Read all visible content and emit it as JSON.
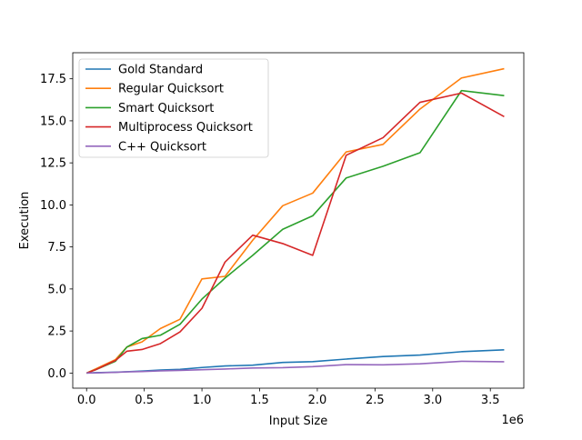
{
  "chart_data": {
    "type": "line",
    "title": "",
    "xlabel": "Input Size",
    "ylabel": "Execution",
    "x_offset_text": "1e6",
    "x_scale": 1000000,
    "xlim": [
      -120000,
      3790000
    ],
    "ylim": [
      -0.9,
      19.05
    ],
    "x_ticks": [
      0,
      500000,
      1000000,
      1500000,
      2000000,
      2500000,
      3000000,
      3500000
    ],
    "x_tick_labels": [
      "0.0",
      "0.5",
      "1.0",
      "1.5",
      "2.0",
      "2.5",
      "3.0",
      "3.5"
    ],
    "y_ticks": [
      0,
      2.5,
      5,
      7.5,
      10,
      12.5,
      15,
      17.5
    ],
    "y_tick_labels": [
      "0.0",
      "2.5",
      "5.0",
      "7.5",
      "10.0",
      "12.5",
      "15.0",
      "17.5"
    ],
    "grid": false,
    "legend_position": "upper-left",
    "x": [
      0,
      80000,
      250000,
      350000,
      480000,
      640000,
      810000,
      1000000,
      1200000,
      1440000,
      1700000,
      1960000,
      2250000,
      2570000,
      2890000,
      3250000,
      3620000
    ],
    "series": [
      {
        "name": "Gold Standard",
        "color": "#1f77b4",
        "values": [
          0.0,
          0.02,
          0.05,
          0.08,
          0.12,
          0.18,
          0.22,
          0.33,
          0.42,
          0.47,
          0.63,
          0.68,
          0.83,
          0.98,
          1.07,
          1.27,
          1.38
        ]
      },
      {
        "name": "Regular Quicksort",
        "color": "#ff7f0e",
        "values": [
          0.0,
          0.25,
          0.8,
          1.55,
          1.85,
          2.65,
          3.2,
          5.6,
          5.75,
          7.9,
          9.95,
          10.7,
          13.15,
          13.6,
          15.7,
          17.55,
          18.1
        ]
      },
      {
        "name": "Smart Quicksort",
        "color": "#2ca02c",
        "values": [
          0.0,
          0.2,
          0.7,
          1.55,
          2.05,
          2.25,
          2.9,
          4.4,
          5.65,
          7.0,
          8.55,
          9.35,
          11.6,
          12.3,
          13.1,
          16.8,
          16.5
        ]
      },
      {
        "name": "Multiprocess Quicksort",
        "color": "#d62728",
        "values": [
          0.0,
          0.2,
          0.75,
          1.3,
          1.4,
          1.75,
          2.45,
          3.85,
          6.6,
          8.2,
          7.7,
          7.0,
          12.95,
          14.0,
          16.1,
          16.65,
          15.25
        ]
      },
      {
        "name": "C++ Quicksort",
        "color": "#9467bd",
        "values": [
          0.0,
          0.01,
          0.04,
          0.07,
          0.09,
          0.13,
          0.16,
          0.2,
          0.24,
          0.3,
          0.32,
          0.38,
          0.5,
          0.49,
          0.55,
          0.7,
          0.67
        ]
      }
    ]
  }
}
